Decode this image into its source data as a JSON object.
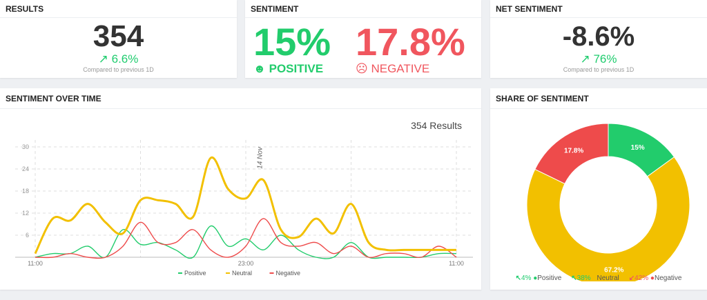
{
  "results": {
    "title": "RESULTS",
    "value": "354",
    "delta": "6.6%",
    "compare": "Compared to previous 1D"
  },
  "sentiment": {
    "title": "SENTIMENT",
    "positive_value": "15%",
    "positive_label": "POSITIVE",
    "negative_value": "17.8%",
    "negative_label": "NEGATIVE"
  },
  "net": {
    "title": "NET SENTIMENT",
    "value": "-8.6%",
    "delta": "76%",
    "compare": "Compared to previous 1D"
  },
  "over_time": {
    "title": "SENTIMENT OVER TIME",
    "results_label": "354 Results"
  },
  "share": {
    "title": "SHARE OF SENTIMENT",
    "legend": [
      {
        "arrow": "up",
        "change": "4%",
        "name": "Positive",
        "change_color": "#1fcc6e"
      },
      {
        "arrow": "up",
        "change": "38%",
        "name": "Neutral",
        "change_color": "#1fcc6e"
      },
      {
        "arrow": "down",
        "change": "42%",
        "name": "Negative",
        "change_color": "#f0565e"
      }
    ]
  },
  "colors": {
    "positive": "#22cc6c",
    "neutral": "#f2c000",
    "negative": "#ee4b4b"
  },
  "chart_data": [
    {
      "type": "line",
      "title": "SENTIMENT OVER TIME",
      "x_ticks": [
        "11:00",
        "23:00",
        "11:00"
      ],
      "y_ticks": [
        "6",
        "12",
        "18",
        "24",
        "30"
      ],
      "ylim": [
        0,
        30
      ],
      "annotation": "14 Nov",
      "grid": true,
      "legend_placement": "bottom",
      "x": [
        "11:00",
        "12:00",
        "13:00",
        "14:00",
        "15:00",
        "16:00",
        "17:00",
        "18:00",
        "19:00",
        "20:00",
        "21:00",
        "22:00",
        "23:00",
        "00:00",
        "01:00",
        "02:00",
        "03:00",
        "04:00",
        "05:00",
        "06:00",
        "07:00",
        "08:00",
        "09:00",
        "10:00",
        "11:00"
      ],
      "series": [
        {
          "name": "Positive",
          "color": "#22cc6c",
          "values": [
            0,
            1,
            1,
            3,
            0,
            7.5,
            3.5,
            4,
            2,
            0,
            8.5,
            3,
            5,
            2,
            6,
            2,
            0,
            0,
            4,
            0,
            0,
            0,
            0,
            1,
            1
          ]
        },
        {
          "name": "Neutral",
          "color": "#f2c000",
          "values": [
            1,
            10.5,
            10,
            14.5,
            9.5,
            6.5,
            15.5,
            15.5,
            14.5,
            11,
            27,
            18.5,
            16,
            21,
            7.5,
            5.5,
            10.5,
            6.5,
            14.5,
            4,
            2,
            2,
            2,
            2,
            2
          ]
        },
        {
          "name": "Negative",
          "color": "#ee4b4b",
          "values": [
            0,
            0,
            1,
            0,
            0,
            3,
            9.5,
            4,
            4,
            7.5,
            2,
            0,
            3,
            10.5,
            4,
            3,
            4,
            1,
            3,
            0,
            1,
            1,
            0,
            3,
            0
          ]
        }
      ]
    },
    {
      "type": "pie",
      "title": "SHARE OF SENTIMENT",
      "categories": [
        "Positive",
        "Neutral",
        "Negative"
      ],
      "values": [
        15,
        67.2,
        17.8
      ],
      "labels": [
        "15%",
        "67.2%",
        "17.8%"
      ],
      "colors": [
        "#22cc6c",
        "#f2c000",
        "#ee4b4b"
      ]
    }
  ]
}
